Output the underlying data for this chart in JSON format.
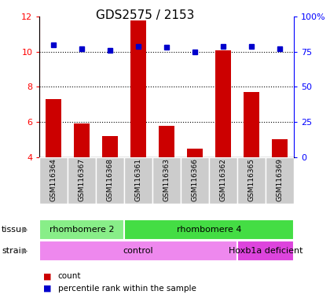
{
  "title": "GDS2575 / 2153",
  "samples": [
    "GSM116364",
    "GSM116367",
    "GSM116368",
    "GSM116361",
    "GSM116363",
    "GSM116366",
    "GSM116362",
    "GSM116365",
    "GSM116369"
  ],
  "counts": [
    7.3,
    5.9,
    5.2,
    11.8,
    5.8,
    4.5,
    10.1,
    7.7,
    5.0
  ],
  "percentiles": [
    80,
    77,
    76,
    79,
    78,
    75,
    79,
    79,
    77
  ],
  "ylim_left": [
    4,
    12
  ],
  "ylim_right": [
    0,
    100
  ],
  "yticks_left": [
    4,
    6,
    8,
    10,
    12
  ],
  "yticks_right": [
    0,
    25,
    50,
    75,
    100
  ],
  "bar_color": "#cc0000",
  "dot_color": "#0000cc",
  "bar_width": 0.55,
  "tissue_groups": [
    {
      "label": "rhombomere 2",
      "start": 0,
      "end": 3,
      "color": "#88ee88"
    },
    {
      "label": "rhombomere 4",
      "start": 3,
      "end": 9,
      "color": "#44dd44"
    }
  ],
  "strain_groups": [
    {
      "label": "control",
      "start": 0,
      "end": 7,
      "color": "#ee88ee"
    },
    {
      "label": "Hoxb1a deficient",
      "start": 7,
      "end": 9,
      "color": "#dd44dd"
    }
  ],
  "legend_items": [
    {
      "label": "count",
      "color": "#cc0000"
    },
    {
      "label": "percentile rank within the sample",
      "color": "#0000cc"
    }
  ],
  "background_color": "#ffffff",
  "xlabels_bg": "#cccccc",
  "grid_color": "#000000",
  "title_fontsize": 11,
  "sample_fontsize": 6.5,
  "tick_fontsize": 8,
  "annot_fontsize": 8,
  "legend_fontsize": 7.5,
  "gridlines_at": [
    6,
    8,
    10
  ],
  "arrow_color": "#888888"
}
